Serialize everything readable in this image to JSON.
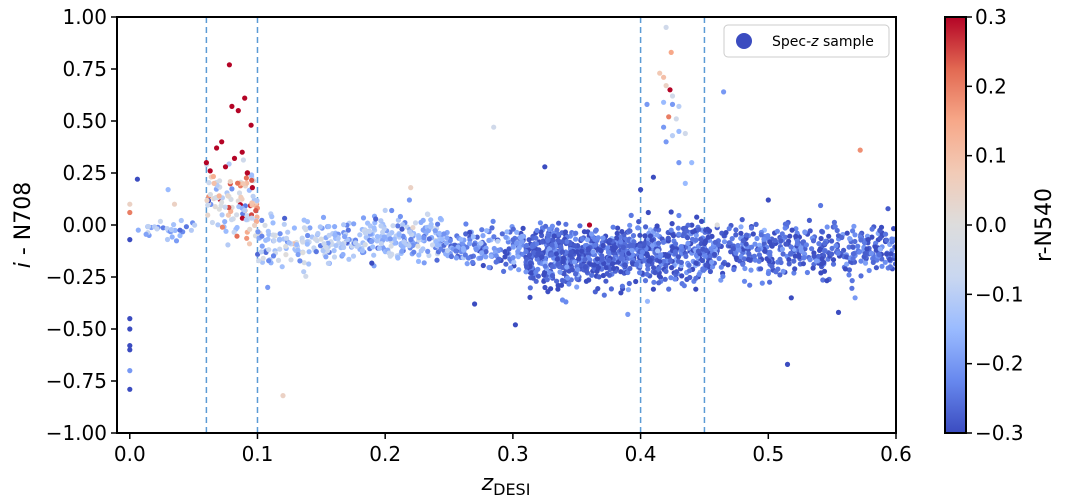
{
  "chart_data": {
    "type": "scatter",
    "title": "",
    "xlabel_base": "z",
    "xlabel_sub": "DESI",
    "ylabel_italic": "i",
    "ylabel_rest": " - N708",
    "xlim": [
      -0.01,
      0.6
    ],
    "ylim": [
      -1.0,
      1.0
    ],
    "xticks": [
      0.0,
      0.1,
      0.2,
      0.3,
      0.4,
      0.5,
      0.6
    ],
    "xtick_labels": [
      "0.0",
      "0.1",
      "0.2",
      "0.3",
      "0.4",
      "0.5",
      "0.6"
    ],
    "yticks": [
      -1.0,
      -0.75,
      -0.5,
      -0.25,
      0.0,
      0.25,
      0.5,
      0.75,
      1.0
    ],
    "ytick_labels": [
      "−1.00",
      "−0.75",
      "−0.50",
      "−0.25",
      "0.00",
      "0.25",
      "0.50",
      "0.75",
      "1.00"
    ],
    "vertical_lines_x": [
      0.06,
      0.1,
      0.4,
      0.45
    ],
    "vertical_line_color": "#5b9bd5",
    "legend": {
      "label_prefix": "Spec-",
      "label_italic": "z",
      "label_suffix": " sample",
      "marker_color": "#3b4cc0",
      "placement": "upper right"
    },
    "colorbar": {
      "label": "r-N540",
      "range": [
        -0.3,
        0.3
      ],
      "ticks": [
        -0.3,
        -0.2,
        -0.1,
        0.0,
        0.1,
        0.2,
        0.3
      ],
      "tick_labels": [
        "−0.3",
        "−0.2",
        "−0.1",
        "0.0",
        "0.1",
        "0.2",
        "0.3"
      ],
      "colormap": "coolwarm",
      "cmap_stops": [
        "#3b4cc0",
        "#6788ee",
        "#9abbff",
        "#c9d7f0",
        "#dddddd",
        "#f2cbb7",
        "#f7a889",
        "#e26952",
        "#b40426"
      ]
    },
    "clusters": [
      {
        "x0": 0.0,
        "x1": 0.06,
        "ymean": -0.02,
        "ysd": 0.03,
        "n": 30,
        "cmean": -0.15,
        "csd": 0.06
      },
      {
        "x0": 0.06,
        "x1": 0.1,
        "ymean": 0.1,
        "ysd": 0.09,
        "n": 110,
        "cmean": 0.02,
        "csd": 0.15
      },
      {
        "x0": 0.1,
        "x1": 0.16,
        "ymean": -0.08,
        "ysd": 0.05,
        "n": 120,
        "cmean": -0.12,
        "csd": 0.06
      },
      {
        "x0": 0.16,
        "x1": 0.245,
        "ymean": -0.07,
        "ysd": 0.05,
        "n": 220,
        "cmean": -0.15,
        "csd": 0.06
      },
      {
        "x0": 0.245,
        "x1": 0.31,
        "ymean": -0.11,
        "ysd": 0.05,
        "n": 160,
        "cmean": -0.22,
        "csd": 0.05
      },
      {
        "x0": 0.31,
        "x1": 0.39,
        "ymean": -0.15,
        "ysd": 0.07,
        "n": 520,
        "cmean": -0.27,
        "csd": 0.04
      },
      {
        "x0": 0.39,
        "x1": 0.455,
        "ymean": -0.13,
        "ysd": 0.07,
        "n": 360,
        "cmean": -0.26,
        "csd": 0.05
      },
      {
        "x0": 0.455,
        "x1": 0.6,
        "ymean": -0.12,
        "ysd": 0.06,
        "n": 440,
        "cmean": -0.26,
        "csd": 0.04
      }
    ],
    "highlighted_points": [
      {
        "x": 0.0,
        "y": -0.45,
        "c": -0.3
      },
      {
        "x": 0.0,
        "y": -0.5,
        "c": -0.3
      },
      {
        "x": 0.0,
        "y": -0.58,
        "c": -0.3
      },
      {
        "x": 0.0,
        "y": -0.6,
        "c": -0.3
      },
      {
        "x": 0.0,
        "y": -0.7,
        "c": -0.2
      },
      {
        "x": 0.0,
        "y": -0.79,
        "c": -0.3
      },
      {
        "x": 0.0,
        "y": 0.1,
        "c": 0.05
      },
      {
        "x": 0.0,
        "y": 0.06,
        "c": 0.2
      },
      {
        "x": 0.0,
        "y": -0.07,
        "c": -0.3
      },
      {
        "x": 0.006,
        "y": 0.22,
        "c": -0.3
      },
      {
        "x": 0.03,
        "y": 0.17,
        "c": -0.15
      },
      {
        "x": 0.035,
        "y": 0.1,
        "c": 0.05
      },
      {
        "x": 0.06,
        "y": 0.3,
        "c": 0.3
      },
      {
        "x": 0.063,
        "y": 0.26,
        "c": 0.3
      },
      {
        "x": 0.068,
        "y": 0.37,
        "c": 0.3
      },
      {
        "x": 0.072,
        "y": 0.4,
        "c": 0.3
      },
      {
        "x": 0.078,
        "y": 0.77,
        "c": 0.3
      },
      {
        "x": 0.08,
        "y": 0.57,
        "c": 0.3
      },
      {
        "x": 0.085,
        "y": 0.55,
        "c": 0.3
      },
      {
        "x": 0.09,
        "y": 0.61,
        "c": 0.3
      },
      {
        "x": 0.088,
        "y": 0.35,
        "c": 0.3
      },
      {
        "x": 0.095,
        "y": 0.48,
        "c": 0.3
      },
      {
        "x": 0.092,
        "y": 0.25,
        "c": 0.3
      },
      {
        "x": 0.096,
        "y": 0.18,
        "c": 0.3
      },
      {
        "x": 0.075,
        "y": 0.28,
        "c": 0.3
      },
      {
        "x": 0.082,
        "y": 0.32,
        "c": 0.3
      },
      {
        "x": 0.07,
        "y": 0.14,
        "c": 0.12
      },
      {
        "x": 0.066,
        "y": 0.2,
        "c": 0.1
      },
      {
        "x": 0.12,
        "y": -0.82,
        "c": 0.05
      },
      {
        "x": 0.108,
        "y": -0.3,
        "c": -0.2
      },
      {
        "x": 0.2,
        "y": 0.07,
        "c": -0.1
      },
      {
        "x": 0.22,
        "y": 0.18,
        "c": 0.05
      },
      {
        "x": 0.219,
        "y": 0.12,
        "c": -0.2
      },
      {
        "x": 0.285,
        "y": 0.47,
        "c": -0.05
      },
      {
        "x": 0.325,
        "y": 0.28,
        "c": -0.3
      },
      {
        "x": 0.27,
        "y": -0.38,
        "c": -0.3
      },
      {
        "x": 0.302,
        "y": -0.48,
        "c": -0.3
      },
      {
        "x": 0.39,
        "y": -0.43,
        "c": -0.2
      },
      {
        "x": 0.41,
        "y": 0.23,
        "c": -0.3
      },
      {
        "x": 0.4,
        "y": 0.17,
        "c": -0.3
      },
      {
        "x": 0.42,
        "y": 0.95,
        "c": -0.05
      },
      {
        "x": 0.424,
        "y": 0.83,
        "c": 0.15
      },
      {
        "x": 0.415,
        "y": 0.73,
        "c": 0.08
      },
      {
        "x": 0.418,
        "y": 0.71,
        "c": 0.1
      },
      {
        "x": 0.42,
        "y": 0.67,
        "c": 0.05
      },
      {
        "x": 0.423,
        "y": 0.65,
        "c": 0.3
      },
      {
        "x": 0.425,
        "y": 0.62,
        "c": -0.05
      },
      {
        "x": 0.418,
        "y": 0.59,
        "c": -0.15
      },
      {
        "x": 0.425,
        "y": 0.58,
        "c": -0.2
      },
      {
        "x": 0.43,
        "y": 0.57,
        "c": -0.1
      },
      {
        "x": 0.405,
        "y": 0.58,
        "c": -0.2
      },
      {
        "x": 0.422,
        "y": 0.52,
        "c": 0.2
      },
      {
        "x": 0.428,
        "y": 0.51,
        "c": -0.05
      },
      {
        "x": 0.435,
        "y": 0.44,
        "c": -0.05
      },
      {
        "x": 0.43,
        "y": 0.45,
        "c": -0.15
      },
      {
        "x": 0.425,
        "y": 0.43,
        "c": -0.1
      },
      {
        "x": 0.418,
        "y": 0.47,
        "c": -0.2
      },
      {
        "x": 0.42,
        "y": 0.4,
        "c": -0.2
      },
      {
        "x": 0.43,
        "y": 0.3,
        "c": -0.2
      },
      {
        "x": 0.435,
        "y": 0.2,
        "c": -0.15
      },
      {
        "x": 0.44,
        "y": 0.3,
        "c": -0.15
      },
      {
        "x": 0.465,
        "y": 0.64,
        "c": -0.2
      },
      {
        "x": 0.572,
        "y": 0.36,
        "c": 0.18
      },
      {
        "x": 0.515,
        "y": -0.67,
        "c": -0.3
      },
      {
        "x": 0.518,
        "y": -0.35,
        "c": -0.3
      },
      {
        "x": 0.555,
        "y": -0.42,
        "c": -0.3
      },
      {
        "x": 0.568,
        "y": -0.35,
        "c": -0.2
      },
      {
        "x": 0.5,
        "y": 0.12,
        "c": -0.3
      },
      {
        "x": 0.36,
        "y": 0.0,
        "c": 0.3
      },
      {
        "x": 0.46,
        "y": 0.0,
        "c": 0.0
      }
    ]
  }
}
